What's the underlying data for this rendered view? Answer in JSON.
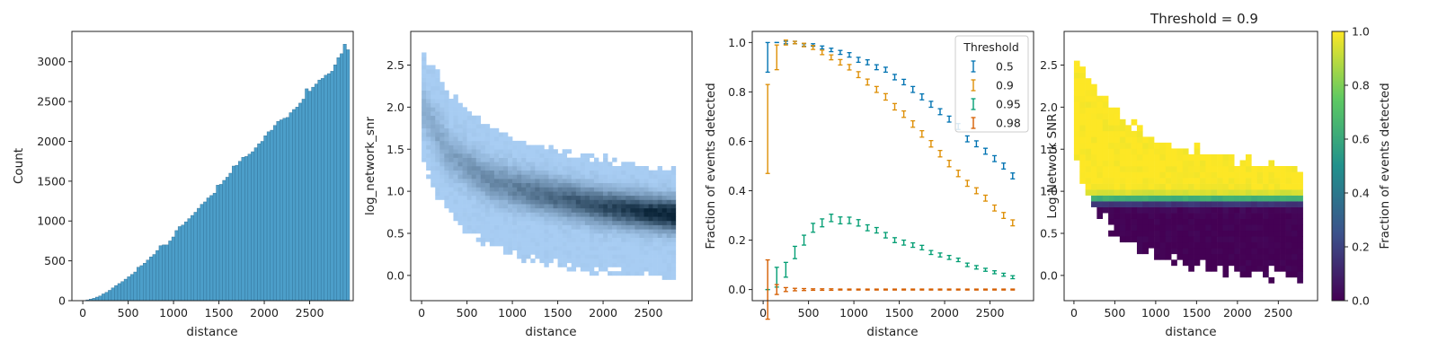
{
  "colors": {
    "hist_bar": "#4c9ec9",
    "hist_edge": "#2e6f95",
    "hist2d_light": "#a8cdf3",
    "hist2d_dark": "#0a2438",
    "series": [
      "#0173b2",
      "#de8f05",
      "#029e73",
      "#d55e00"
    ],
    "viridis": [
      "#440154",
      "#3b528b",
      "#21918c",
      "#5ec962",
      "#fde725"
    ]
  },
  "chart_data": [
    {
      "type": "bar",
      "xlabel": "distance",
      "ylabel": "Count",
      "xlim": [
        -120,
        2980
      ],
      "ylim": [
        0,
        3380
      ],
      "xticks": [
        "0",
        "500",
        "1000",
        "1500",
        "2000",
        "2500"
      ],
      "yticks": [
        "0",
        "500",
        "1000",
        "1500",
        "2000",
        "2500",
        "3000"
      ],
      "bin_start": 0,
      "bin_width": 35,
      "values": [
        3,
        10,
        20,
        30,
        45,
        60,
        85,
        105,
        130,
        160,
        190,
        215,
        240,
        270,
        300,
        330,
        360,
        420,
        440,
        470,
        510,
        550,
        580,
        630,
        690,
        700,
        700,
        750,
        800,
        880,
        930,
        950,
        990,
        1030,
        1070,
        1110,
        1160,
        1210,
        1240,
        1290,
        1320,
        1350,
        1450,
        1460,
        1510,
        1550,
        1600,
        1690,
        1700,
        1750,
        1800,
        1810,
        1840,
        1870,
        1920,
        1970,
        2000,
        2070,
        2120,
        2140,
        2200,
        2250,
        2270,
        2290,
        2300,
        2360,
        2400,
        2430,
        2480,
        2530,
        2660,
        2630,
        2680,
        2720,
        2770,
        2790,
        2830,
        2850,
        2880,
        2960,
        3050,
        3100,
        3220,
        3150
      ]
    },
    {
      "type": "heatmap",
      "xlabel": "distance",
      "ylabel": "log_network_snr",
      "xlim": [
        -120,
        2980
      ],
      "ylim": [
        -0.3,
        2.9
      ],
      "xticks": [
        "0",
        "500",
        "1000",
        "1500",
        "2000",
        "2500"
      ],
      "yticks": [
        "0.0",
        "0.5",
        "1.0",
        "1.5",
        "2.0",
        "2.5"
      ],
      "x_range": [
        0,
        2800
      ],
      "y_range": [
        -0.3,
        2.9
      ],
      "bins": [
        56,
        64
      ],
      "upper_envelope": [
        [
          0,
          2.6
        ],
        [
          150,
          2.45
        ],
        [
          300,
          2.2
        ],
        [
          500,
          1.95
        ],
        [
          700,
          1.8
        ],
        [
          1000,
          1.62
        ],
        [
          1500,
          1.48
        ],
        [
          2000,
          1.38
        ],
        [
          2500,
          1.3
        ],
        [
          2800,
          1.25
        ]
      ],
      "lower_envelope": [
        [
          0,
          1.45
        ],
        [
          150,
          1.0
        ],
        [
          300,
          0.75
        ],
        [
          500,
          0.5
        ],
        [
          700,
          0.38
        ],
        [
          1000,
          0.25
        ],
        [
          1500,
          0.12
        ],
        [
          2000,
          0.05
        ],
        [
          2500,
          0.0
        ],
        [
          2800,
          -0.05
        ]
      ],
      "center": [
        [
          0,
          2.0
        ],
        [
          300,
          1.45
        ],
        [
          700,
          1.15
        ],
        [
          1000,
          1.05
        ],
        [
          1500,
          0.92
        ],
        [
          2000,
          0.82
        ],
        [
          2500,
          0.75
        ],
        [
          2800,
          0.72
        ]
      ],
      "spread": [
        [
          0,
          0.3
        ],
        [
          500,
          0.26
        ],
        [
          1000,
          0.24
        ],
        [
          2000,
          0.22
        ],
        [
          2800,
          0.21
        ]
      ]
    },
    {
      "type": "line",
      "xlabel": "distance",
      "ylabel": "Fraction of events detected",
      "xlim": [
        -120,
        2980
      ],
      "ylim": [
        -0.045,
        1.045
      ],
      "xticks": [
        "0",
        "500",
        "1000",
        "1500",
        "2000",
        "2500"
      ],
      "yticks": [
        "0.0",
        "0.2",
        "0.4",
        "0.6",
        "0.8",
        "1.0"
      ],
      "legend_title": "Threshold",
      "legend_position": "top-right",
      "x": [
        50,
        150,
        250,
        350,
        450,
        550,
        650,
        750,
        850,
        950,
        1050,
        1150,
        1250,
        1350,
        1450,
        1550,
        1650,
        1750,
        1850,
        1950,
        2050,
        2150,
        2250,
        2350,
        2450,
        2550,
        2650,
        2750
      ],
      "series": [
        {
          "name": "0.5",
          "values": [
            0.94,
            1.0,
            1.0,
            1.0,
            0.99,
            0.99,
            0.98,
            0.97,
            0.96,
            0.95,
            0.93,
            0.92,
            0.9,
            0.89,
            0.86,
            0.84,
            0.81,
            0.78,
            0.75,
            0.72,
            0.69,
            0.66,
            0.61,
            0.59,
            0.56,
            0.53,
            0.5,
            0.46
          ],
          "errors": [
            0.06,
            0.0,
            0.005,
            0.005,
            0.005,
            0.005,
            0.006,
            0.007,
            0.008,
            0.009,
            0.01,
            0.01,
            0.01,
            0.01,
            0.011,
            0.011,
            0.012,
            0.012,
            0.012,
            0.012,
            0.012,
            0.012,
            0.012,
            0.012,
            0.012,
            0.012,
            0.012,
            0.012
          ]
        },
        {
          "name": "0.9",
          "values": [
            0.65,
            0.94,
            1.0,
            1.0,
            0.99,
            0.98,
            0.96,
            0.94,
            0.92,
            0.9,
            0.87,
            0.84,
            0.81,
            0.78,
            0.74,
            0.71,
            0.67,
            0.63,
            0.59,
            0.55,
            0.51,
            0.47,
            0.43,
            0.4,
            0.37,
            0.33,
            0.3,
            0.27
          ],
          "errors": [
            0.18,
            0.05,
            0.01,
            0.005,
            0.007,
            0.008,
            0.009,
            0.01,
            0.011,
            0.011,
            0.012,
            0.012,
            0.012,
            0.013,
            0.013,
            0.013,
            0.013,
            0.013,
            0.013,
            0.013,
            0.013,
            0.013,
            0.012,
            0.012,
            0.012,
            0.012,
            0.012,
            0.012
          ]
        },
        {
          "name": "0.95",
          "values": [
            0.0,
            0.05,
            0.08,
            0.15,
            0.2,
            0.25,
            0.27,
            0.29,
            0.28,
            0.28,
            0.27,
            0.25,
            0.24,
            0.22,
            0.2,
            0.19,
            0.18,
            0.17,
            0.15,
            0.14,
            0.13,
            0.12,
            0.1,
            0.09,
            0.08,
            0.07,
            0.06,
            0.05
          ],
          "errors": [
            0.0,
            0.04,
            0.03,
            0.025,
            0.02,
            0.018,
            0.016,
            0.015,
            0.014,
            0.013,
            0.013,
            0.012,
            0.011,
            0.011,
            0.01,
            0.01,
            0.009,
            0.009,
            0.008,
            0.008,
            0.008,
            0.007,
            0.007,
            0.007,
            0.006,
            0.006,
            0.006,
            0.006
          ]
        },
        {
          "name": "0.98",
          "values": [
            0.0,
            0.0,
            0.0,
            0.0,
            0.0,
            0.0,
            0.0,
            0.0,
            0.0,
            0.0,
            0.0,
            0.0,
            0.0,
            0.0,
            0.0,
            0.0,
            0.0,
            0.0,
            0.0,
            0.0,
            0.0,
            0.0,
            0.0,
            0.0,
            0.0,
            0.0,
            0.0,
            0.0
          ],
          "errors": [
            0.12,
            0.02,
            0.008,
            0.005,
            0.004,
            0.003,
            0.003,
            0.003,
            0.002,
            0.002,
            0.002,
            0.002,
            0.002,
            0.002,
            0.002,
            0.002,
            0.002,
            0.002,
            0.002,
            0.002,
            0.002,
            0.002,
            0.002,
            0.002,
            0.002,
            0.002,
            0.002,
            0.002
          ]
        }
      ]
    },
    {
      "type": "heatmap",
      "title": "Threshold = 0.9",
      "xlabel": "distance",
      "ylabel": "Log Network SNR",
      "colorbar_label": "Fraction of events detected",
      "xlim": [
        -120,
        2980
      ],
      "ylim": [
        -0.3,
        2.9
      ],
      "xticks": [
        "0",
        "500",
        "1000",
        "1500",
        "2000",
        "2500"
      ],
      "yticks": [
        "0.0",
        "0.5",
        "1.0",
        "1.5",
        "2.0",
        "2.5"
      ],
      "colorbar_range": [
        0.0,
        1.0
      ],
      "colorbar_ticks": [
        "0.0",
        "0.2",
        "0.4",
        "0.6",
        "0.8",
        "1.0"
      ],
      "x_range": [
        0,
        2800
      ],
      "y_range": [
        -0.3,
        2.9
      ],
      "bins": [
        40,
        46
      ],
      "transition_level": 0.9,
      "transition_width": 0.07
    }
  ]
}
